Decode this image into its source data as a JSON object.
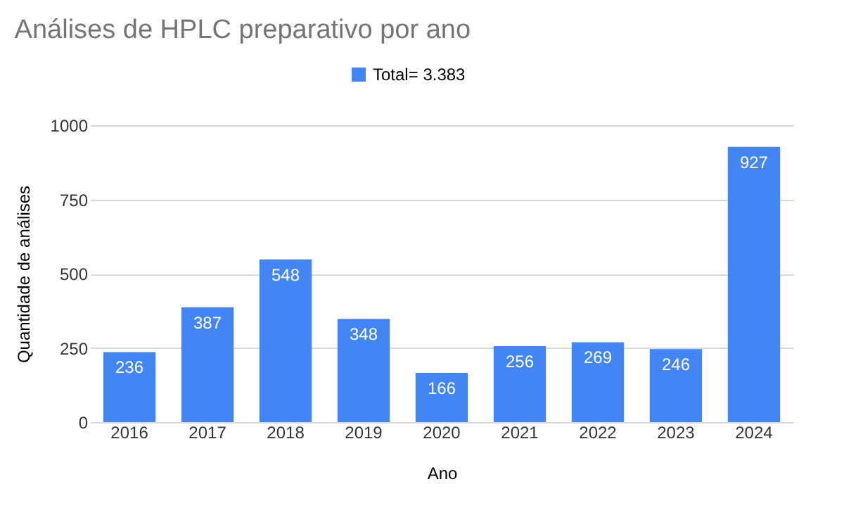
{
  "chart_data": {
    "type": "bar",
    "title": "Análises de HPLC preparativo por ano",
    "xlabel": "Ano",
    "ylabel": "Quantidade de análises",
    "categories": [
      "2016",
      "2017",
      "2018",
      "2019",
      "2020",
      "2021",
      "2022",
      "2023",
      "2024"
    ],
    "series": [
      {
        "name": "Total= 3.383",
        "color": "#4285f4",
        "values": [
          236,
          387,
          548,
          348,
          166,
          256,
          269,
          246,
          927
        ]
      }
    ],
    "ylim": [
      0,
      1000
    ],
    "yticks": [
      0,
      250,
      500,
      750,
      1000
    ],
    "grid": "y",
    "legend": "top",
    "data_labels": true
  }
}
